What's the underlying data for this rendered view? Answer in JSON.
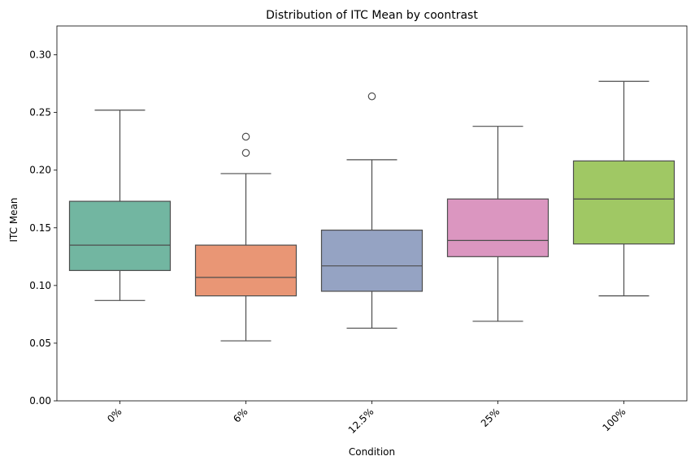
{
  "chart_data": {
    "type": "box",
    "title": "Distribution of ITC Mean by coontrast",
    "xlabel": "Condition",
    "ylabel": "ITC Mean",
    "ylim": [
      0,
      0.325
    ],
    "yticks": [
      "0.00",
      "0.05",
      "0.10",
      "0.15",
      "0.20",
      "0.25",
      "0.30"
    ],
    "grid": false,
    "categories": [
      "0%",
      "6%",
      "12.5%",
      "25%",
      "100%"
    ],
    "boxes": [
      {
        "category": "0%",
        "whisker_low": 0.087,
        "q1": 0.113,
        "median": 0.135,
        "q3": 0.173,
        "whisker_high": 0.252,
        "outliers": [],
        "color": "#72b6a1"
      },
      {
        "category": "6%",
        "whisker_low": 0.052,
        "q1": 0.091,
        "median": 0.107,
        "q3": 0.135,
        "whisker_high": 0.197,
        "outliers": [
          0.215,
          0.229
        ],
        "color": "#e99675"
      },
      {
        "category": "12.5%",
        "whisker_low": 0.063,
        "q1": 0.095,
        "median": 0.117,
        "q3": 0.148,
        "whisker_high": 0.209,
        "outliers": [
          0.264
        ],
        "color": "#95a3c3"
      },
      {
        "category": "25%",
        "whisker_low": 0.069,
        "q1": 0.125,
        "median": 0.139,
        "q3": 0.175,
        "whisker_high": 0.238,
        "outliers": [],
        "color": "#db96c0"
      },
      {
        "category": "100%",
        "whisker_low": 0.091,
        "q1": 0.136,
        "median": 0.175,
        "q3": 0.208,
        "whisker_high": 0.277,
        "outliers": [],
        "color": "#a0c864"
      }
    ],
    "line_color": "#4d4d4d",
    "x_tick_rotation_deg": 45
  }
}
